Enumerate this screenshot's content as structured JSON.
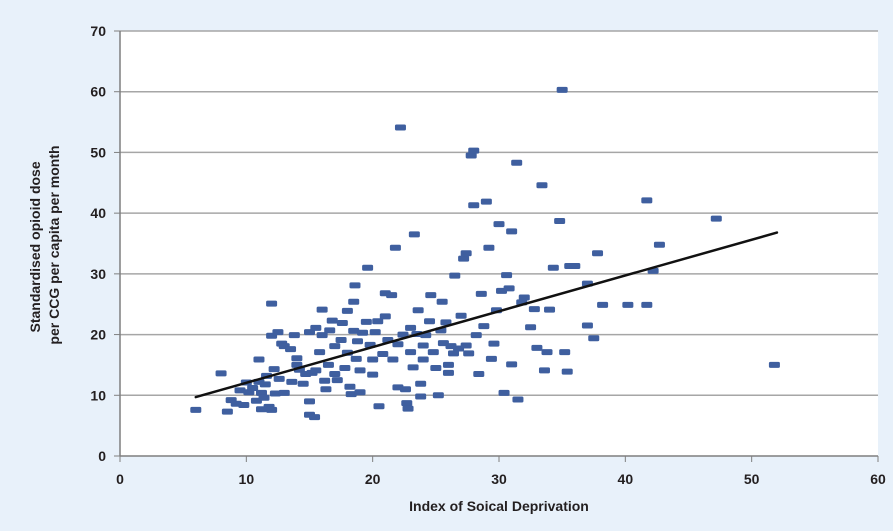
{
  "chart_data": {
    "type": "scatter",
    "xlabel": "Index of Soical Deprivation",
    "ylabel_lines": [
      "Standardised opioid dose",
      "per CCG per capita per month"
    ],
    "xlim": [
      0,
      60
    ],
    "ylim": [
      0,
      70
    ],
    "xticks": [
      0,
      10,
      20,
      30,
      40,
      50,
      60
    ],
    "yticks": [
      0,
      10,
      20,
      30,
      40,
      50,
      60,
      70
    ],
    "grid": "horizontal",
    "legend": "none",
    "colors": {
      "point": "#3f5f9f",
      "trendline": "#111111",
      "grid": "#a6a6a6",
      "axis": "#7f7f7f",
      "plot_bg": "#ffffff",
      "page_bg": "#e8f1fa"
    },
    "trendline": {
      "x": [
        6,
        52
      ],
      "y": [
        9.7,
        36.8
      ]
    },
    "points": [
      [
        6,
        7.6
      ],
      [
        8,
        13.6
      ],
      [
        8.5,
        7.3
      ],
      [
        8.8,
        9.2
      ],
      [
        9.2,
        8.6
      ],
      [
        9.5,
        10.8
      ],
      [
        9.8,
        8.4
      ],
      [
        10,
        12.1
      ],
      [
        10.2,
        10.5
      ],
      [
        10.5,
        11.2
      ],
      [
        10.8,
        9.1
      ],
      [
        11,
        15.9
      ],
      [
        11,
        12.2
      ],
      [
        11.2,
        10.4
      ],
      [
        11.2,
        7.7
      ],
      [
        11.4,
        9.6
      ],
      [
        11.5,
        11.8
      ],
      [
        11.6,
        13.2
      ],
      [
        11.8,
        8.1
      ],
      [
        12,
        7.6
      ],
      [
        12,
        19.8
      ],
      [
        12,
        25.1
      ],
      [
        12.2,
        14.3
      ],
      [
        12.3,
        10.3
      ],
      [
        12.5,
        20.4
      ],
      [
        12.6,
        12.7
      ],
      [
        12.8,
        18.5
      ],
      [
        13,
        18.1
      ],
      [
        13,
        10.4
      ],
      [
        13.5,
        17.6
      ],
      [
        13.6,
        12.2
      ],
      [
        13.8,
        19.9
      ],
      [
        14,
        16.1
      ],
      [
        14,
        15.0
      ],
      [
        14.2,
        14.2
      ],
      [
        14.5,
        11.9
      ],
      [
        14.7,
        13.5
      ],
      [
        15,
        20.4
      ],
      [
        15,
        9.0
      ],
      [
        15,
        6.8
      ],
      [
        15.2,
        13.7
      ],
      [
        15.4,
        6.4
      ],
      [
        15.5,
        14.1
      ],
      [
        15.5,
        21.1
      ],
      [
        15.8,
        17.1
      ],
      [
        16,
        24.1
      ],
      [
        16,
        19.9
      ],
      [
        16.2,
        12.4
      ],
      [
        16.3,
        11.0
      ],
      [
        16.5,
        15.0
      ],
      [
        16.6,
        20.7
      ],
      [
        16.8,
        22.3
      ],
      [
        17,
        18.1
      ],
      [
        17,
        13.5
      ],
      [
        17.2,
        12.5
      ],
      [
        17.5,
        19.1
      ],
      [
        17.6,
        21.9
      ],
      [
        17.8,
        14.5
      ],
      [
        18,
        23.9
      ],
      [
        18,
        17.0
      ],
      [
        18.2,
        11.4
      ],
      [
        18.3,
        10.2
      ],
      [
        18.5,
        20.6
      ],
      [
        18.5,
        25.4
      ],
      [
        18.6,
        28.1
      ],
      [
        18.7,
        16.0
      ],
      [
        18.8,
        18.9
      ],
      [
        19,
        10.5
      ],
      [
        19,
        14.1
      ],
      [
        19.2,
        20.3
      ],
      [
        19.5,
        22.1
      ],
      [
        19.6,
        31.0
      ],
      [
        19.8,
        18.3
      ],
      [
        20,
        13.4
      ],
      [
        20,
        15.9
      ],
      [
        20.2,
        20.4
      ],
      [
        20.4,
        22.2
      ],
      [
        20.5,
        8.2
      ],
      [
        20.8,
        16.8
      ],
      [
        21,
        23.0
      ],
      [
        21,
        26.8
      ],
      [
        21.2,
        19.1
      ],
      [
        21.5,
        26.5
      ],
      [
        21.6,
        15.9
      ],
      [
        21.8,
        34.3
      ],
      [
        22,
        11.3
      ],
      [
        22,
        18.4
      ],
      [
        22.2,
        54.1
      ],
      [
        22.4,
        20.0
      ],
      [
        22.6,
        11.0
      ],
      [
        22.7,
        8.7
      ],
      [
        22.8,
        7.8
      ],
      [
        23,
        21.1
      ],
      [
        23,
        17.1
      ],
      [
        23.2,
        14.6
      ],
      [
        23.3,
        36.5
      ],
      [
        23.5,
        20.1
      ],
      [
        23.6,
        24.0
      ],
      [
        23.8,
        9.8
      ],
      [
        23.8,
        11.9
      ],
      [
        24,
        15.9
      ],
      [
        24,
        18.2
      ],
      [
        24.2,
        19.9
      ],
      [
        24.5,
        22.2
      ],
      [
        24.6,
        26.5
      ],
      [
        24.8,
        17.1
      ],
      [
        25,
        14.5
      ],
      [
        25.2,
        10.0
      ],
      [
        25.4,
        20.7
      ],
      [
        25.5,
        25.4
      ],
      [
        25.6,
        18.6
      ],
      [
        25.8,
        22.0
      ],
      [
        26,
        15.0
      ],
      [
        26,
        13.7
      ],
      [
        26.2,
        18.1
      ],
      [
        26.4,
        16.9
      ],
      [
        26.5,
        29.7
      ],
      [
        26.8,
        17.7
      ],
      [
        27,
        23.1
      ],
      [
        27.2,
        32.5
      ],
      [
        27.4,
        33.4
      ],
      [
        27.4,
        18.2
      ],
      [
        27.6,
        16.9
      ],
      [
        27.8,
        49.5
      ],
      [
        28,
        50.3
      ],
      [
        28,
        41.3
      ],
      [
        28.2,
        19.9
      ],
      [
        28.4,
        13.5
      ],
      [
        28.6,
        26.7
      ],
      [
        28.8,
        21.4
      ],
      [
        29,
        41.9
      ],
      [
        29.2,
        34.3
      ],
      [
        29.4,
        16.0
      ],
      [
        29.6,
        18.5
      ],
      [
        29.8,
        24.0
      ],
      [
        30,
        38.2
      ],
      [
        30.2,
        27.2
      ],
      [
        30.4,
        10.4
      ],
      [
        30.6,
        29.8
      ],
      [
        30.8,
        27.6
      ],
      [
        31,
        15.1
      ],
      [
        31,
        37.0
      ],
      [
        31.4,
        48.3
      ],
      [
        31.5,
        9.3
      ],
      [
        31.8,
        25.3
      ],
      [
        32,
        26.1
      ],
      [
        32.5,
        21.2
      ],
      [
        32.8,
        24.2
      ],
      [
        33,
        17.8
      ],
      [
        33.4,
        44.6
      ],
      [
        33.6,
        14.1
      ],
      [
        33.8,
        17.1
      ],
      [
        34,
        24.1
      ],
      [
        34.3,
        31.0
      ],
      [
        34.8,
        38.7
      ],
      [
        35,
        60.3
      ],
      [
        35.2,
        17.1
      ],
      [
        35.4,
        13.9
      ],
      [
        35.6,
        31.3
      ],
      [
        36,
        31.3
      ],
      [
        37,
        28.4
      ],
      [
        37,
        21.5
      ],
      [
        37.5,
        19.4
      ],
      [
        37.8,
        33.4
      ],
      [
        38.2,
        24.9
      ],
      [
        40.2,
        24.9
      ],
      [
        41.7,
        42.1
      ],
      [
        41.7,
        24.9
      ],
      [
        42.2,
        30.5
      ],
      [
        42.7,
        34.8
      ],
      [
        47.2,
        39.1
      ],
      [
        51.8,
        15.0
      ]
    ]
  }
}
